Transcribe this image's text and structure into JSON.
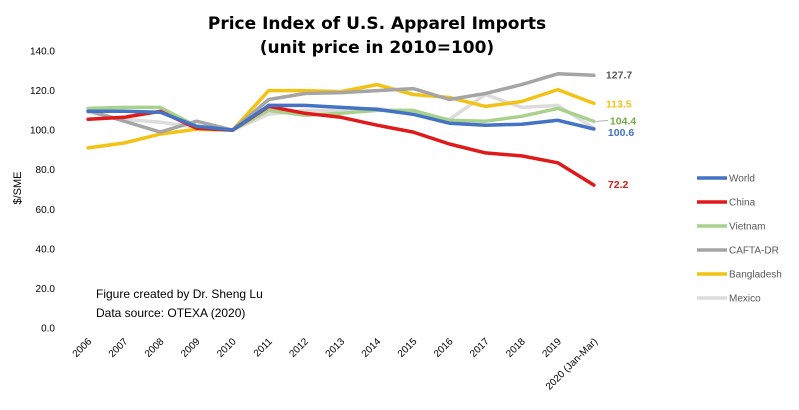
{
  "chart_data": {
    "type": "line",
    "title": "Price Index of U.S. Apparel Imports",
    "subtitle": "(unit price in 2010=100)",
    "xlabel": "",
    "ylabel": "$/SME",
    "ylim": [
      0,
      140
    ],
    "yticks": [
      "0.0",
      "20.0",
      "40.0",
      "60.0",
      "80.0",
      "100.0",
      "120.0",
      "140.0"
    ],
    "grid": false,
    "legend_position": "right",
    "categories": [
      "2006",
      "2007",
      "2008",
      "2009",
      "2010",
      "2011",
      "2012",
      "2013",
      "2014",
      "2015",
      "2016",
      "2017",
      "2018",
      "2019",
      "2020 (Jan-Mar)"
    ],
    "series": [
      {
        "name": "World",
        "color": "#4472C4",
        "values": [
          109.5,
          109.5,
          109.0,
          102.0,
          100.0,
          112.5,
          112.5,
          111.5,
          110.5,
          108.0,
          103.5,
          102.5,
          103.0,
          105.0,
          100.6
        ],
        "end_label": "100.6"
      },
      {
        "name": "China",
        "color": "#E0191A",
        "values": [
          105.5,
          106.5,
          109.5,
          101.0,
          100.0,
          112.0,
          108.5,
          106.5,
          102.5,
          99.0,
          93.0,
          88.5,
          87.0,
          83.5,
          72.2
        ],
        "end_label": "72.2"
      },
      {
        "name": "Vietnam",
        "color": "#A9D18E",
        "values": [
          111.0,
          111.5,
          111.5,
          102.0,
          100.0,
          110.0,
          107.5,
          108.5,
          110.0,
          110.0,
          105.0,
          104.5,
          107.0,
          111.0,
          104.4
        ],
        "end_label": "104.4"
      },
      {
        "name": "CAFTA-DR",
        "color": "#A5A5A5",
        "values": [
          110.0,
          104.5,
          99.0,
          104.5,
          100.0,
          115.5,
          118.5,
          119.0,
          120.0,
          121.0,
          115.5,
          118.5,
          123.0,
          128.5,
          127.7
        ],
        "end_label": "127.7"
      },
      {
        "name": "Bangladesh",
        "color": "#F2C314",
        "values": [
          91.0,
          93.5,
          98.0,
          100.5,
          100.0,
          120.0,
          120.0,
          119.5,
          123.0,
          118.0,
          116.5,
          112.0,
          114.5,
          120.5,
          113.5
        ],
        "end_label": "113.5"
      },
      {
        "name": "Mexico",
        "color": "#DCDCDC",
        "values": [
          109.0,
          105.5,
          104.0,
          101.5,
          100.0,
          108.0,
          110.0,
          110.0,
          111.0,
          108.0,
          105.5,
          118.0,
          111.5,
          112.5,
          101.0
        ],
        "end_label": null
      }
    ],
    "annotations": [
      "Figure created by Dr. Sheng Lu",
      "Data source: OTEXA (2020)"
    ]
  }
}
